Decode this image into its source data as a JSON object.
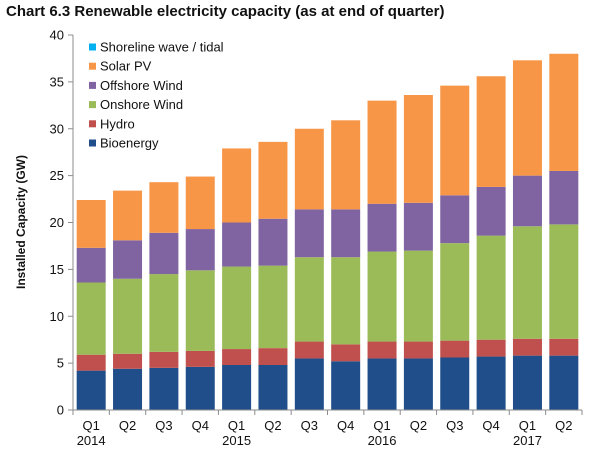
{
  "chart_data": {
    "type": "bar",
    "stacked": true,
    "title": "Chart 6.3 Renewable electricity capacity (as at end of quarter)",
    "xlabel": "",
    "ylabel": "Installed Capacity (GW)",
    "ylim": [
      0,
      40
    ],
    "yticks": [
      0,
      5,
      10,
      15,
      20,
      25,
      30,
      35,
      40
    ],
    "grid": false,
    "legend_position": "top-left",
    "categories": [
      "Q1",
      "Q2",
      "Q3",
      "Q4",
      "Q1",
      "Q2",
      "Q3",
      "Q4",
      "Q1",
      "Q2",
      "Q3",
      "Q4",
      "Q1",
      "Q2"
    ],
    "year_labels": [
      "2014",
      "",
      "",
      "",
      "2015",
      "",
      "",
      "",
      "2016",
      "",
      "",
      "",
      "2017",
      ""
    ],
    "series": [
      {
        "name": "Bioenergy",
        "color": "#1f4e8a",
        "values": [
          4.2,
          4.4,
          4.5,
          4.6,
          4.8,
          4.8,
          5.5,
          5.2,
          5.5,
          5.5,
          5.6,
          5.7,
          5.8,
          5.8
        ]
      },
      {
        "name": "Hydro",
        "color": "#c0504d",
        "values": [
          1.7,
          1.6,
          1.7,
          1.7,
          1.7,
          1.8,
          1.8,
          1.8,
          1.8,
          1.8,
          1.8,
          1.8,
          1.8,
          1.8
        ]
      },
      {
        "name": "Onshore Wind",
        "color": "#9bbb59",
        "values": [
          7.7,
          8.0,
          8.3,
          8.6,
          8.8,
          8.8,
          9.0,
          9.3,
          9.6,
          9.7,
          10.4,
          11.1,
          12.0,
          12.2
        ]
      },
      {
        "name": "Offshore Wind",
        "color": "#8064a2",
        "values": [
          3.7,
          4.1,
          4.4,
          4.4,
          4.7,
          5.0,
          5.1,
          5.1,
          5.1,
          5.1,
          5.1,
          5.2,
          5.4,
          5.7
        ]
      },
      {
        "name": "Solar PV",
        "color": "#f79646",
        "values": [
          5.1,
          5.3,
          5.4,
          5.6,
          7.9,
          8.2,
          8.6,
          9.5,
          11.0,
          11.5,
          11.7,
          11.8,
          12.3,
          12.5
        ]
      },
      {
        "name": "Shoreline wave / tidal",
        "color": "#00b0f0",
        "values": [
          0,
          0,
          0,
          0,
          0,
          0,
          0,
          0,
          0,
          0,
          0,
          0,
          0,
          0
        ]
      }
    ],
    "legend_order": [
      "Shoreline wave / tidal",
      "Solar PV",
      "Offshore Wind",
      "Onshore Wind",
      "Hydro",
      "Bioenergy"
    ]
  }
}
